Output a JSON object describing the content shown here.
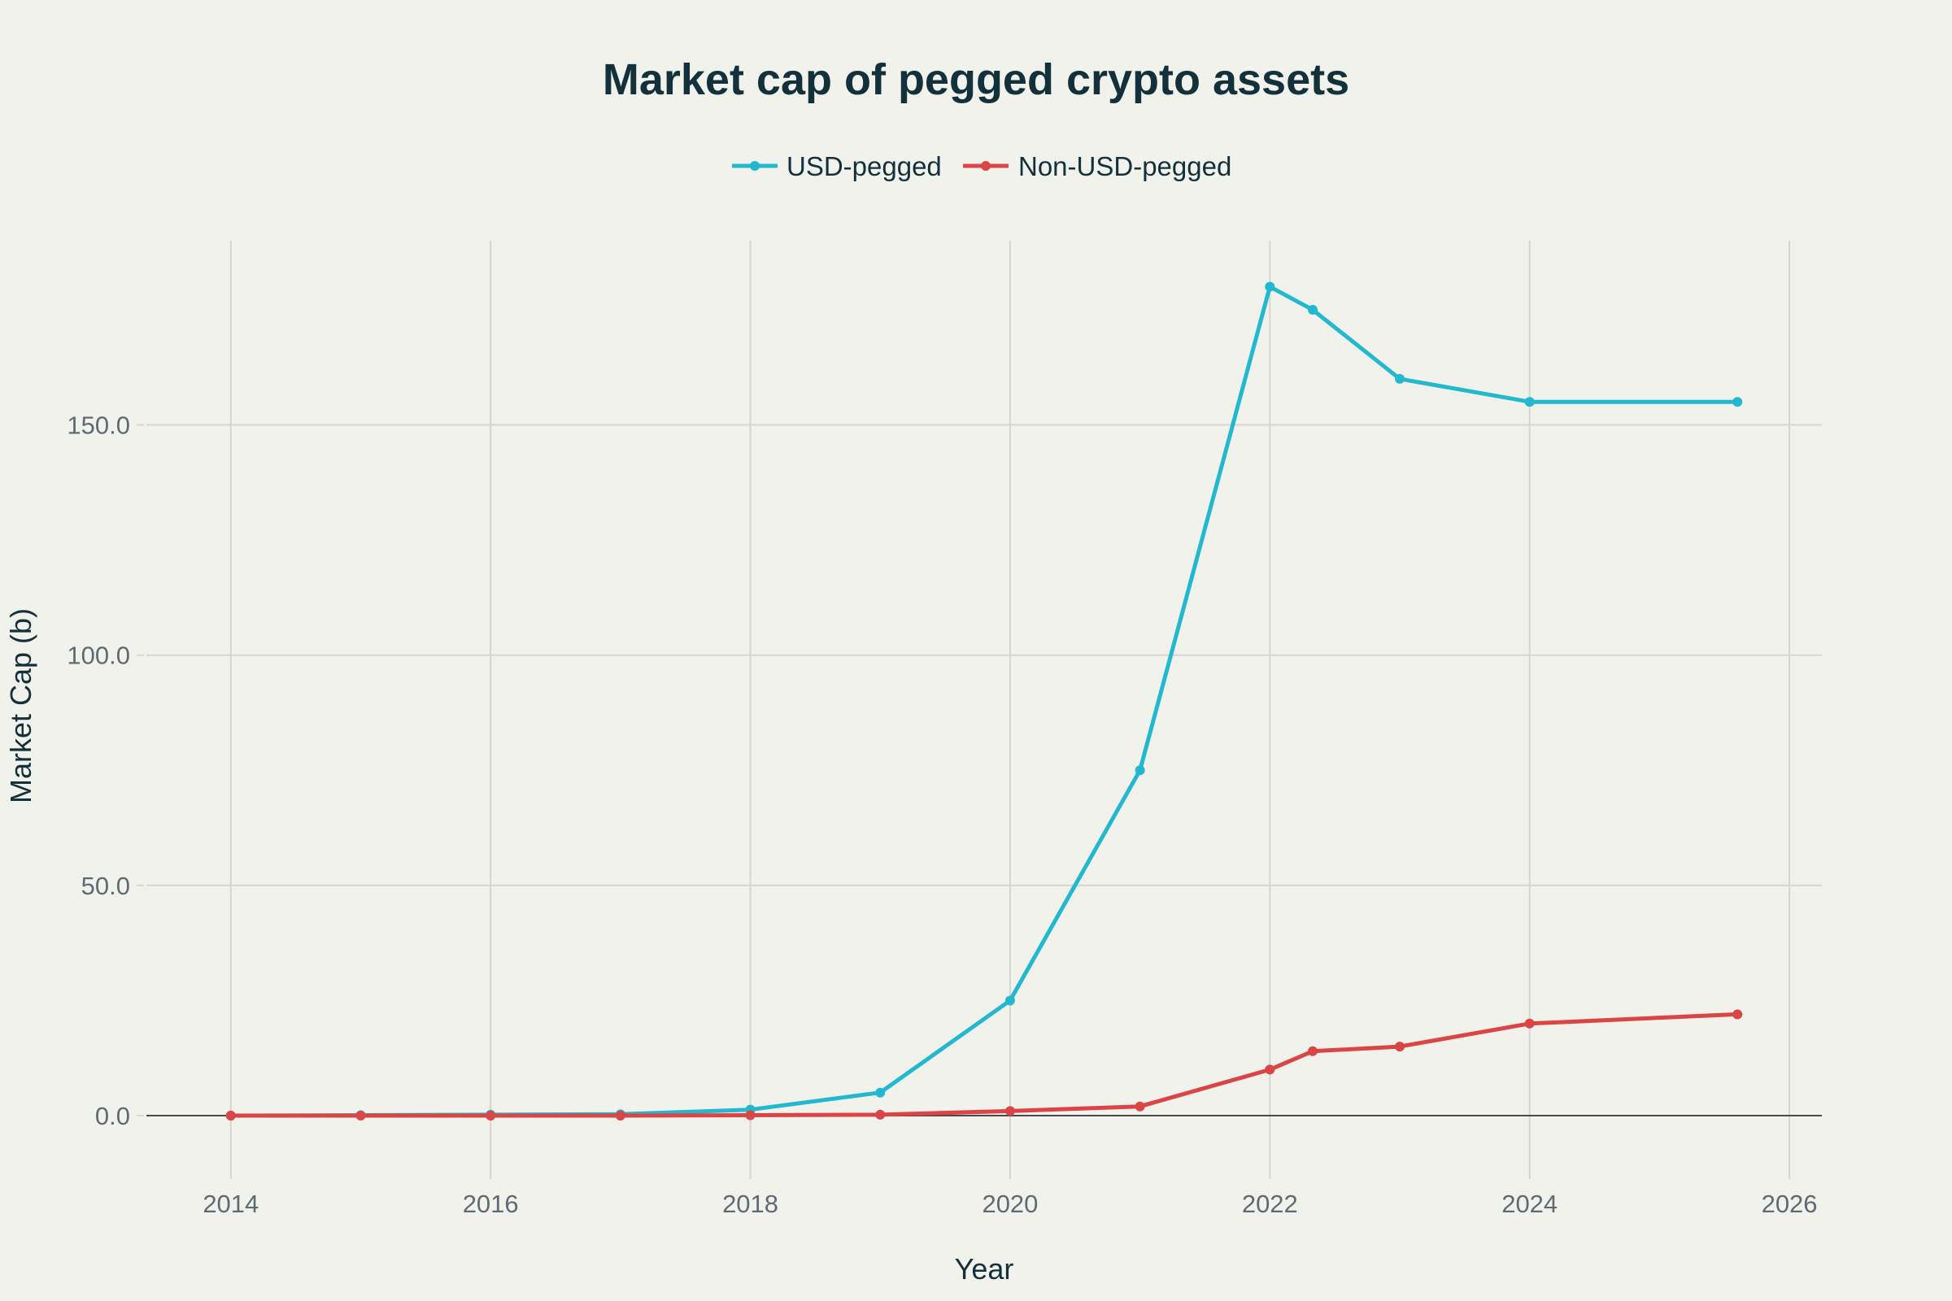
{
  "chart_data": {
    "type": "line",
    "title": "Market cap of pegged crypto assets",
    "xlabel": "Year",
    "ylabel": "Market Cap (b)",
    "xlim": [
      2013.35,
      2026.25
    ],
    "ylim": [
      -12,
      190
    ],
    "x_ticks": [
      2014,
      2016,
      2018,
      2020,
      2022,
      2024,
      2026
    ],
    "x_tick_labels": [
      "2014",
      "2016",
      "2018",
      "2020",
      "2022",
      "2024",
      "2026"
    ],
    "y_ticks": [
      0,
      50,
      100,
      150
    ],
    "y_tick_labels": [
      "0.0",
      "50.0",
      "100.0",
      "150.0"
    ],
    "grid": true,
    "legend_position": "top-center",
    "series": [
      {
        "name": "USD-pegged",
        "color": "#22b8cf",
        "x": [
          2014,
          2015,
          2016,
          2017,
          2018,
          2019,
          2020,
          2021,
          2022,
          2022.33,
          2023,
          2024,
          2025.6
        ],
        "values": [
          0,
          0.1,
          0.2,
          0.3,
          1.3,
          5,
          25,
          75,
          180,
          175,
          160,
          155,
          155
        ]
      },
      {
        "name": "Non-USD-pegged",
        "color": "#db4546",
        "x": [
          2014,
          2015,
          2016,
          2017,
          2018,
          2019,
          2020,
          2021,
          2022,
          2022.33,
          2023,
          2024,
          2025.6
        ],
        "values": [
          0,
          0,
          0,
          0,
          0.1,
          0.2,
          1,
          2,
          10,
          14,
          15,
          20,
          22
        ]
      }
    ]
  }
}
